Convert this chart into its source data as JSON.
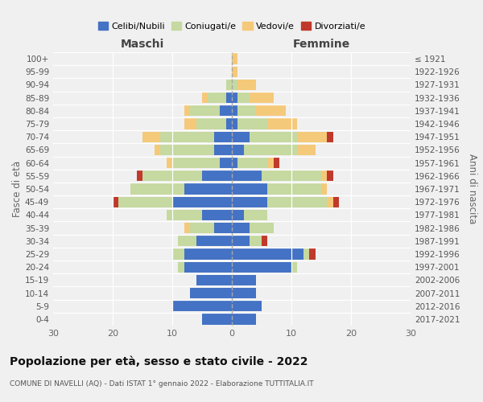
{
  "age_groups": [
    "100+",
    "95-99",
    "90-94",
    "85-89",
    "80-84",
    "75-79",
    "70-74",
    "65-69",
    "60-64",
    "55-59",
    "50-54",
    "45-49",
    "40-44",
    "35-39",
    "30-34",
    "25-29",
    "20-24",
    "15-19",
    "10-14",
    "5-9",
    "0-4"
  ],
  "birth_years": [
    "≤ 1921",
    "1922-1926",
    "1927-1931",
    "1932-1936",
    "1937-1941",
    "1942-1946",
    "1947-1951",
    "1952-1956",
    "1957-1961",
    "1962-1966",
    "1967-1971",
    "1972-1976",
    "1977-1981",
    "1982-1986",
    "1987-1991",
    "1992-1996",
    "1997-2001",
    "2002-2006",
    "2007-2011",
    "2012-2016",
    "2017-2021"
  ],
  "maschi": {
    "celibe": [
      0,
      0,
      0,
      1,
      2,
      1,
      3,
      3,
      2,
      5,
      8,
      10,
      5,
      3,
      6,
      8,
      8,
      6,
      7,
      10,
      5
    ],
    "coniugato": [
      0,
      0,
      1,
      3,
      5,
      5,
      9,
      9,
      8,
      10,
      9,
      9,
      6,
      4,
      3,
      2,
      1,
      0,
      0,
      0,
      0
    ],
    "vedovo": [
      0,
      0,
      0,
      1,
      1,
      2,
      3,
      1,
      1,
      0,
      0,
      0,
      0,
      1,
      0,
      0,
      0,
      0,
      0,
      0,
      0
    ],
    "divorziato": [
      0,
      0,
      0,
      0,
      0,
      0,
      0,
      0,
      0,
      1,
      0,
      1,
      0,
      0,
      0,
      0,
      0,
      0,
      0,
      0,
      0
    ]
  },
  "femmine": {
    "nubile": [
      0,
      0,
      0,
      1,
      1,
      1,
      3,
      2,
      1,
      5,
      6,
      6,
      2,
      3,
      3,
      12,
      10,
      4,
      4,
      5,
      4
    ],
    "coniugata": [
      0,
      0,
      1,
      2,
      3,
      5,
      8,
      9,
      5,
      10,
      9,
      10,
      4,
      4,
      2,
      1,
      1,
      0,
      0,
      0,
      0
    ],
    "vedova": [
      1,
      1,
      3,
      4,
      5,
      5,
      5,
      3,
      1,
      1,
      1,
      1,
      0,
      0,
      0,
      0,
      0,
      0,
      0,
      0,
      0
    ],
    "divorziata": [
      0,
      0,
      0,
      0,
      0,
      0,
      1,
      0,
      1,
      1,
      0,
      1,
      0,
      0,
      1,
      1,
      0,
      0,
      0,
      0,
      0
    ]
  },
  "colors": {
    "celibe": "#4472c4",
    "coniugato": "#c5d9a0",
    "vedovo": "#f5c97a",
    "divorziato": "#c0392b"
  },
  "xlim": 30,
  "title": "Popolazione per età, sesso e stato civile - 2022",
  "subtitle": "COMUNE DI NAVELLI (AQ) - Dati ISTAT 1° gennaio 2022 - Elaborazione TUTTITALIA.IT",
  "ylabel_left": "Fasce di età",
  "ylabel_right": "Anni di nascita",
  "legend_labels": [
    "Celibi/Nubili",
    "Coniugati/e",
    "Vedovi/e",
    "Divorziati/e"
  ],
  "maschi_label": "Maschi",
  "femmine_label": "Femmine",
  "background_color": "#f0f0f0"
}
